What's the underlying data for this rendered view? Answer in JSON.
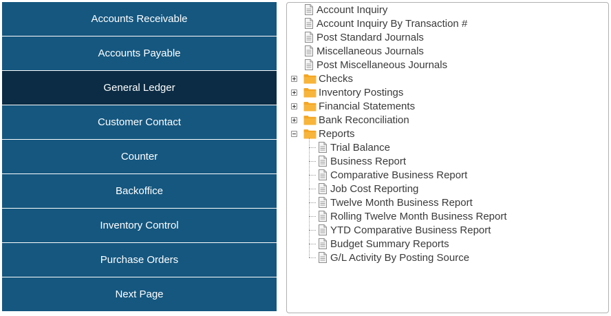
{
  "nav": {
    "items": [
      {
        "label": "Accounts Receivable",
        "active": false
      },
      {
        "label": "Accounts Payable",
        "active": false
      },
      {
        "label": "General Ledger",
        "active": true
      },
      {
        "label": "Customer Contact",
        "active": false
      },
      {
        "label": "Counter",
        "active": false
      },
      {
        "label": "Backoffice",
        "active": false
      },
      {
        "label": "Inventory Control",
        "active": false
      },
      {
        "label": "Purchase Orders",
        "active": false
      },
      {
        "label": "Next Page",
        "active": false
      }
    ]
  },
  "tree": {
    "items": [
      {
        "label": "Account Inquiry",
        "type": "document"
      },
      {
        "label": "Account Inquiry By Transaction #",
        "type": "document"
      },
      {
        "label": "Post Standard Journals",
        "type": "document"
      },
      {
        "label": "Miscellaneous Journals",
        "type": "document"
      },
      {
        "label": "Post Miscellaneous Journals",
        "type": "document"
      },
      {
        "label": "Checks",
        "type": "folder",
        "expanded": false
      },
      {
        "label": "Inventory Postings",
        "type": "folder",
        "expanded": false
      },
      {
        "label": "Financial Statements",
        "type": "folder",
        "expanded": false
      },
      {
        "label": "Bank Reconciliation",
        "type": "folder",
        "expanded": false
      },
      {
        "label": "Reports",
        "type": "folder",
        "expanded": true,
        "children": [
          {
            "label": "Trial Balance",
            "type": "document"
          },
          {
            "label": "Business Report",
            "type": "document"
          },
          {
            "label": "Comparative Business Report",
            "type": "document"
          },
          {
            "label": "Job Cost Reporting",
            "type": "document"
          },
          {
            "label": "Twelve Month Business Report",
            "type": "document"
          },
          {
            "label": "Rolling Twelve Month Business Report",
            "type": "document"
          },
          {
            "label": "YTD Comparative Business Report",
            "type": "document"
          },
          {
            "label": "Budget Summary Reports",
            "type": "document"
          },
          {
            "label": "G/L Activity By Posting Source",
            "type": "document"
          }
        ]
      }
    ]
  },
  "colors": {
    "nav_bg": "#15577f",
    "nav_active_bg": "#0b2c44",
    "folder": "#f5a623",
    "text": "#3a3a3a"
  }
}
